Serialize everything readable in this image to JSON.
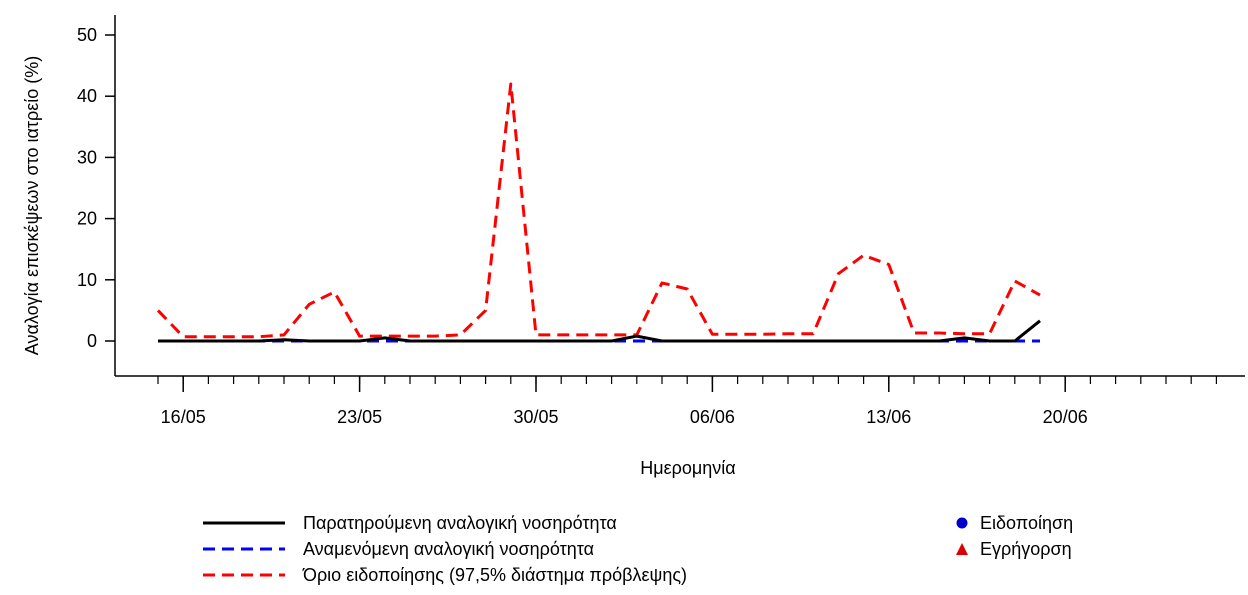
{
  "chart_data": {
    "type": "line",
    "xlabel": "Ημερομηνία",
    "ylabel": "Αναλογία επισκέψεων στο ιατρείο (%)",
    "ylim": [
      -5,
      55
    ],
    "y_ticks": [
      0,
      10,
      20,
      30,
      40,
      50
    ],
    "x_ticks": [
      "16/05",
      "23/05",
      "30/05",
      "06/06",
      "13/06",
      "20/06"
    ],
    "x_dates": [
      "15/05",
      "16/05",
      "17/05",
      "18/05",
      "19/05",
      "20/05",
      "21/05",
      "22/05",
      "23/05",
      "24/05",
      "25/05",
      "26/05",
      "27/05",
      "28/05",
      "29/05",
      "30/05",
      "31/05",
      "01/06",
      "02/06",
      "03/06",
      "04/06",
      "05/06",
      "06/06",
      "07/06",
      "08/06",
      "09/06",
      "10/06",
      "11/06",
      "12/06",
      "13/06",
      "14/06",
      "15/06",
      "16/06",
      "17/06",
      "18/06",
      "19/06"
    ],
    "grid": false,
    "legend_position": "bottom",
    "series": [
      {
        "name": "Παρατηρούμενη αναλογική νοσηρότητα",
        "color": "#000000",
        "style": "solid",
        "values": [
          0,
          0,
          0,
          0,
          0,
          0.2,
          0,
          0,
          0,
          0.5,
          0,
          0,
          0,
          0,
          0,
          0,
          0,
          0,
          0,
          0.8,
          0,
          0,
          0,
          0,
          0,
          0,
          0,
          0,
          0,
          0,
          0,
          0,
          0.5,
          0,
          0,
          3.3
        ]
      },
      {
        "name": "Αναμενόμενη αναλογική νοσηρότητα",
        "color": "#0000ff",
        "style": "dashed",
        "values": [
          0,
          0,
          0,
          0,
          0,
          0,
          0,
          0,
          0,
          0,
          0,
          0,
          0,
          0,
          0,
          0,
          0,
          0,
          0,
          0,
          0,
          0,
          0,
          0,
          0,
          0,
          0,
          0,
          0,
          0,
          0,
          0,
          0,
          0,
          0,
          0
        ]
      },
      {
        "name": "Όριο ειδοποίησης (97,5% διάστημα πρόβλεψης)",
        "color": "#ff0000",
        "style": "dashed",
        "values": [
          5,
          0.7,
          0.7,
          0.7,
          0.7,
          1,
          6,
          8,
          0.8,
          0.8,
          0.8,
          0.8,
          1,
          5,
          42,
          1,
          1,
          1,
          1,
          1,
          9.5,
          8.5,
          1.1,
          1.1,
          1.1,
          1.2,
          1.2,
          11,
          14,
          12.5,
          1.3,
          1.3,
          1.2,
          1.2,
          9.8,
          7.5
        ]
      }
    ],
    "markers": [
      {
        "name": "Ειδοποίηση",
        "color": "#0000cc",
        "shape": "circle"
      },
      {
        "name": "Εγρήγορση",
        "color": "#dd0000",
        "shape": "triangle"
      }
    ]
  }
}
